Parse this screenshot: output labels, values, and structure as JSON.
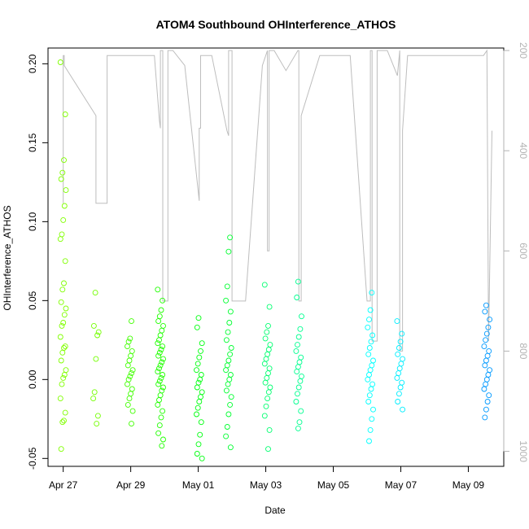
{
  "chart_data": {
    "type": "scatter",
    "title": "ATOM4 Southbound OHInterference_ATHOS",
    "xlabel": "Date",
    "ylabel": "OHInterference_ATHOS",
    "x_tick_labels": [
      "Apr 27",
      "Apr 29",
      "May 01",
      "May 03",
      "May 05",
      "May 07",
      "May 09"
    ],
    "x_tick_days": [
      0,
      2,
      4,
      6,
      8,
      10,
      12
    ],
    "xlim_days": [
      -0.45,
      13.05
    ],
    "ylim": [
      -0.055,
      0.21
    ],
    "y_ticks": [
      -0.05,
      0.0,
      0.05,
      0.1,
      0.15,
      0.2
    ],
    "y_tick_labels": [
      "-0.05",
      "0.00",
      "0.05",
      "0.10",
      "0.15",
      "0.20"
    ],
    "right_axis": {
      "label": "",
      "ticks": [
        200,
        400,
        600,
        800,
        1000
      ],
      "tick_labels": [
        "200",
        "400",
        "600",
        "800",
        "1000"
      ],
      "lim": [
        195,
        1030
      ],
      "inverted": true,
      "color": "#b3b3b3"
    },
    "series": [
      {
        "name": "flight-apr27",
        "day": 0.0,
        "color": "#80ff00",
        "values": [
          0.201,
          0.168,
          0.139,
          0.131,
          0.127,
          0.12,
          0.11,
          0.101,
          0.092,
          0.089,
          0.075,
          0.061,
          0.057,
          0.049,
          0.045,
          0.041,
          0.036,
          0.034,
          0.027,
          0.021,
          0.02,
          0.017,
          0.012,
          0.006,
          0.003,
          0.001,
          -0.003,
          -0.012,
          -0.021,
          -0.026,
          -0.027,
          -0.044
        ]
      },
      {
        "name": "flight-apr28",
        "day": 0.97,
        "color": "#73ff00",
        "values": [
          0.055,
          0.034,
          0.03,
          0.028,
          0.013,
          -0.008,
          -0.012,
          -0.023,
          -0.028
        ]
      },
      {
        "name": "flight-apr29",
        "day": 1.98,
        "color": "#40ff00",
        "values": [
          0.037,
          0.026,
          0.024,
          0.021,
          0.018,
          0.015,
          0.012,
          0.009,
          0.006,
          0.004,
          0.002,
          0.0,
          -0.003,
          -0.006,
          -0.009,
          -0.012,
          -0.016,
          -0.02,
          -0.028
        ]
      },
      {
        "name": "flight-apr30",
        "day": 2.88,
        "color": "#20ff00",
        "values": [
          0.057,
          0.05,
          0.044,
          0.04,
          0.037,
          0.034,
          0.031,
          0.028,
          0.025,
          0.023,
          0.021,
          0.019,
          0.017,
          0.015,
          0.013,
          0.011,
          0.009,
          0.007,
          0.005,
          0.003,
          0.001,
          -0.001,
          -0.003,
          -0.005,
          -0.007,
          -0.01,
          -0.013,
          -0.016,
          -0.02,
          -0.024,
          -0.029,
          -0.034,
          -0.038,
          -0.042
        ]
      },
      {
        "name": "flight-may01",
        "day": 4.03,
        "color": "#00ff10",
        "values": [
          0.039,
          0.033,
          0.023,
          0.018,
          0.014,
          0.01,
          0.006,
          0.003,
          0.0,
          -0.002,
          -0.005,
          -0.008,
          -0.011,
          -0.014,
          -0.018,
          -0.022,
          -0.027,
          -0.035,
          -0.041,
          -0.047,
          -0.05
        ]
      },
      {
        "name": "flight-may02",
        "day": 4.9,
        "color": "#00ff30",
        "values": [
          0.09,
          0.081,
          0.059,
          0.05,
          0.043,
          0.036,
          0.03,
          0.025,
          0.02,
          0.016,
          0.012,
          0.009,
          0.006,
          0.003,
          0.0,
          -0.003,
          -0.007,
          -0.011,
          -0.016,
          -0.022,
          -0.03,
          -0.036,
          -0.043
        ]
      },
      {
        "name": "flight-may03",
        "day": 6.05,
        "color": "#00ff70",
        "values": [
          0.06,
          0.046,
          0.034,
          0.03,
          0.026,
          0.022,
          0.019,
          0.016,
          0.013,
          0.01,
          0.007,
          0.004,
          0.001,
          -0.002,
          -0.005,
          -0.008,
          -0.012,
          -0.017,
          -0.023,
          -0.032,
          -0.044
        ]
      },
      {
        "name": "flight-may04",
        "day": 6.98,
        "color": "#00ff90",
        "values": [
          0.062,
          0.052,
          0.04,
          0.032,
          0.027,
          0.022,
          0.018,
          0.014,
          0.011,
          0.008,
          0.005,
          0.002,
          -0.001,
          -0.005,
          -0.009,
          -0.014,
          -0.02,
          -0.027,
          -0.031
        ]
      },
      {
        "name": "flight-may06",
        "day": 9.1,
        "color": "#00ffff",
        "values": [
          0.055,
          0.044,
          0.038,
          0.033,
          0.028,
          0.024,
          0.02,
          0.016,
          0.012,
          0.009,
          0.006,
          0.003,
          0.0,
          -0.003,
          -0.006,
          -0.01,
          -0.014,
          -0.019,
          -0.025,
          -0.032,
          -0.039
        ]
      },
      {
        "name": "flight-may07",
        "day": 9.97,
        "color": "#00eeff",
        "values": [
          0.037,
          0.029,
          0.024,
          0.02,
          0.016,
          0.013,
          0.01,
          0.007,
          0.004,
          0.001,
          -0.002,
          -0.005,
          -0.009,
          -0.014,
          -0.019
        ]
      },
      {
        "name": "flight-may09",
        "day": 12.55,
        "color": "#0099ff",
        "values": [
          0.047,
          0.043,
          0.038,
          0.033,
          0.029,
          0.025,
          0.021,
          0.018,
          0.015,
          0.012,
          0.009,
          0.006,
          0.003,
          0.0,
          -0.003,
          -0.006,
          -0.01,
          -0.014,
          -0.019,
          -0.024
        ]
      }
    ],
    "pressure_trace": {
      "color": "#bdbdbd",
      "note": "secondary axis (inverted), grey line",
      "x_days": [
        0.0,
        0.0,
        0.03,
        0.03,
        0.97,
        0.97,
        1.3,
        1.3,
        2.7,
        2.85,
        2.88,
        2.88,
        2.95,
        2.95,
        3.1,
        3.1,
        3.25,
        3.6,
        4.03,
        4.03,
        4.07,
        4.07,
        4.4,
        4.85,
        4.9,
        4.9,
        5.0,
        5.0,
        5.4,
        5.9,
        6.05,
        6.05,
        6.1,
        6.1,
        6.25,
        6.6,
        6.95,
        6.98,
        6.98,
        7.05,
        7.05,
        7.6,
        8.5,
        9.0,
        9.1,
        9.1,
        9.15,
        9.15,
        9.3,
        9.3,
        9.6,
        9.9,
        9.97,
        9.97,
        10.05,
        10.05,
        10.2,
        12.45,
        12.55,
        12.55,
        12.6,
        12.6,
        12.7
      ],
      "pressure_hpa": [
        505,
        210,
        210,
        230,
        330,
        505,
        505,
        210,
        210,
        340,
        355,
        200,
        200,
        700,
        700,
        200,
        200,
        230,
        500,
        355,
        355,
        210,
        210,
        360,
        370,
        200,
        200,
        700,
        700,
        230,
        200,
        600,
        600,
        200,
        200,
        240,
        200,
        200,
        700,
        700,
        330,
        210,
        210,
        700,
        700,
        200,
        200,
        780,
        780,
        200,
        200,
        250,
        200,
        800,
        800,
        360,
        210,
        210,
        200,
        200,
        780,
        780,
        360
      ]
    }
  }
}
